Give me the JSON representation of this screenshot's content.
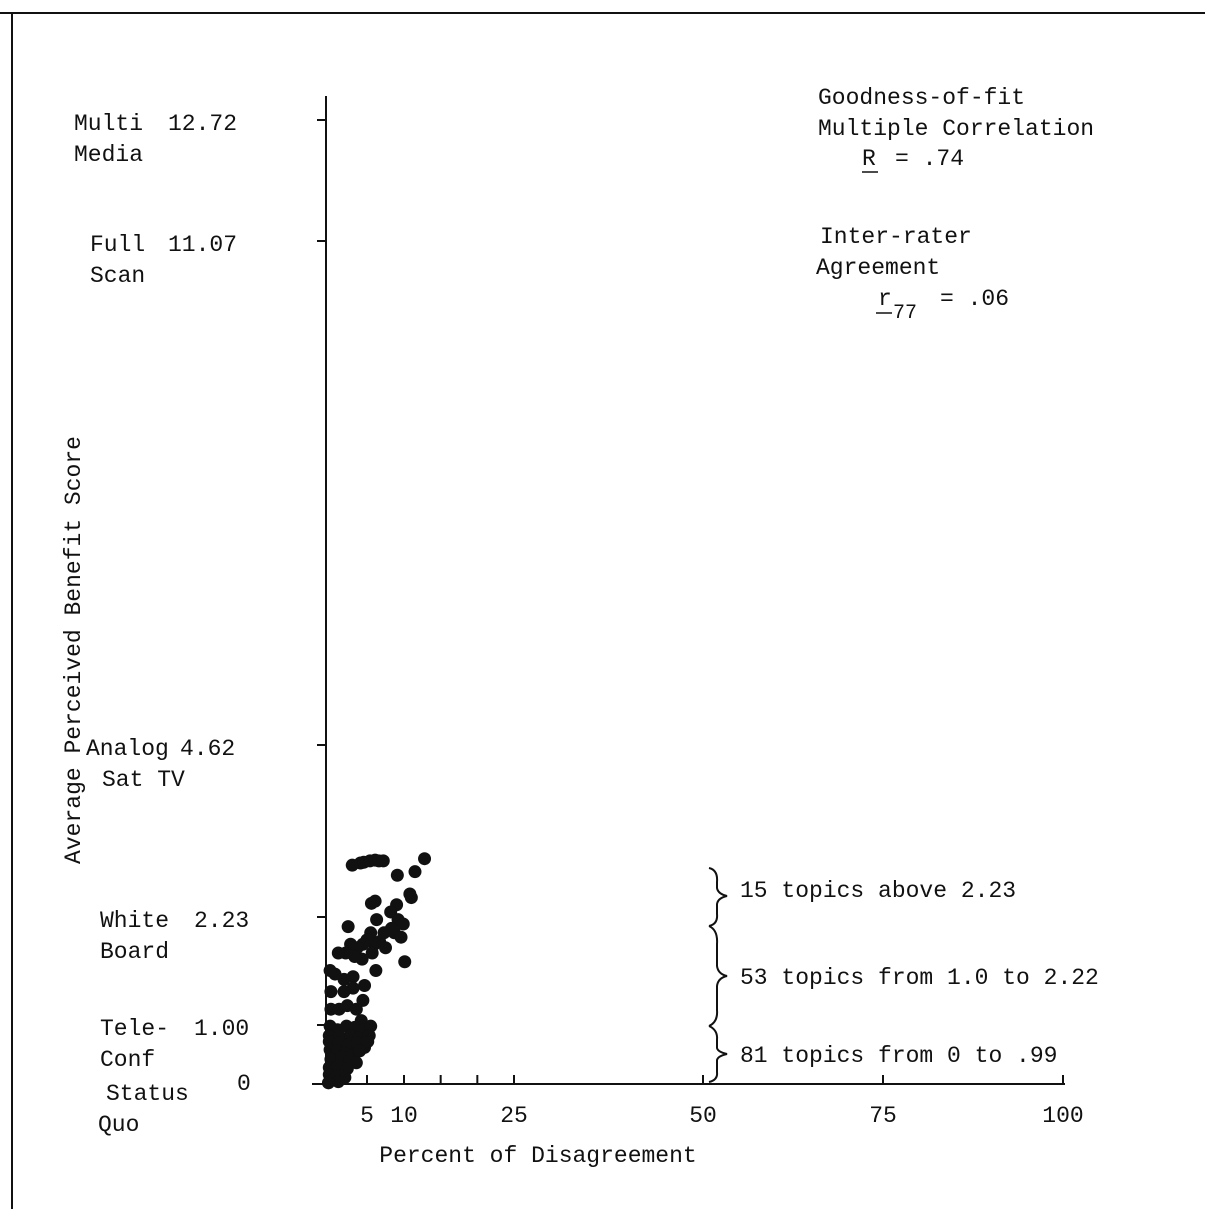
{
  "chart_data": {
    "type": "scatter",
    "title": "",
    "xlabel": "Percent of Disagreement",
    "ylabel": "Average Perceived Benefit Score",
    "xlim": [
      0,
      100
    ],
    "ylim": [
      0,
      12.72
    ],
    "x_ticks": [
      {
        "value": 5,
        "label": "5"
      },
      {
        "value": 10,
        "label": "10"
      },
      {
        "value": 15,
        "label": ""
      },
      {
        "value": 20,
        "label": ""
      },
      {
        "value": 25,
        "label": "25"
      },
      {
        "value": 50,
        "label": "50"
      },
      {
        "value": 75,
        "label": "75"
      },
      {
        "value": 100,
        "label": "100"
      }
    ],
    "y_ticks": [
      {
        "value": 12.72,
        "value_label": "12.72",
        "name_lines": [
          "Multi",
          "Media"
        ]
      },
      {
        "value": 11.07,
        "value_label": "11.07",
        "name_lines": [
          "Full",
          "Scan"
        ]
      },
      {
        "value": 4.62,
        "value_label": "4.62",
        "name_lines": [
          "Analog",
          "Sat TV"
        ]
      },
      {
        "value": 2.23,
        "value_label": "2.23",
        "name_lines": [
          "White",
          "Board"
        ]
      },
      {
        "value": 1.0,
        "value_label": "1.00",
        "name_lines": [
          "Tele-",
          "Conf"
        ]
      },
      {
        "value": 0,
        "value_label": "0",
        "name_lines": [
          "Status",
          "Quo"
        ]
      }
    ],
    "annotations": {
      "fit_heading_lines": [
        "Goodness-of-fit",
        "Multiple Correlation"
      ],
      "fit_symbol": "R",
      "fit_value": "= .74",
      "agreement_heading_lines": [
        "Inter-rater",
        "Agreement"
      ],
      "agreement_symbol": "r",
      "agreement_subscript": "77",
      "agreement_value": "= .06"
    },
    "groups": [
      {
        "label": "15 topics above 2.23",
        "y_range": [
          2.23,
          3.0
        ]
      },
      {
        "label": "53 topics from 1.0 to 2.22",
        "y_range": [
          1.0,
          2.22
        ]
      },
      {
        "label": "81 topics from 0 to .99",
        "y_range": [
          0,
          0.99
        ]
      }
    ],
    "points": [
      [
        3.2,
        2.95
      ],
      [
        4.2,
        2.98
      ],
      [
        4.6,
        2.99
      ],
      [
        5.4,
        3.01
      ],
      [
        6.1,
        3.02
      ],
      [
        6.6,
        3.01
      ],
      [
        7.2,
        3.01
      ],
      [
        12.8,
        3.04
      ],
      [
        11.5,
        2.86
      ],
      [
        9.1,
        2.81
      ],
      [
        10.8,
        2.55
      ],
      [
        9.0,
        2.4
      ],
      [
        11.0,
        2.5
      ],
      [
        5.6,
        2.42
      ],
      [
        6.1,
        2.45
      ],
      [
        8.2,
        2.3
      ],
      [
        9.2,
        2.2
      ],
      [
        9.9,
        2.15
      ],
      [
        8.7,
        2.05
      ],
      [
        9.6,
        2.0
      ],
      [
        8.3,
        2.1
      ],
      [
        6.3,
        2.2
      ],
      [
        5.5,
        2.05
      ],
      [
        6.7,
        1.95
      ],
      [
        7.5,
        1.88
      ],
      [
        6.0,
        1.92
      ],
      [
        5.0,
        1.97
      ],
      [
        4.5,
        1.92
      ],
      [
        3.8,
        1.88
      ],
      [
        3.0,
        1.92
      ],
      [
        2.7,
        2.12
      ],
      [
        7.3,
        2.05
      ],
      [
        5.7,
        1.82
      ],
      [
        4.4,
        1.75
      ],
      [
        3.5,
        1.78
      ],
      [
        2.4,
        1.82
      ],
      [
        1.5,
        1.82
      ],
      [
        6.2,
        1.62
      ],
      [
        10.1,
        1.72
      ],
      [
        3.3,
        1.55
      ],
      [
        2.2,
        1.52
      ],
      [
        1.1,
        1.58
      ],
      [
        0.5,
        1.62
      ],
      [
        4.7,
        1.45
      ],
      [
        3.3,
        1.42
      ],
      [
        2.2,
        1.38
      ],
      [
        0.6,
        1.38
      ],
      [
        0.6,
        1.18
      ],
      [
        1.6,
        1.18
      ],
      [
        2.6,
        1.22
      ],
      [
        3.7,
        1.18
      ],
      [
        4.5,
        1.28
      ],
      [
        4.3,
        1.05
      ],
      [
        0.5,
        0.98
      ],
      [
        1.4,
        0.92
      ],
      [
        2.5,
        0.98
      ],
      [
        3.5,
        0.96
      ],
      [
        4.6,
        0.92
      ],
      [
        5.5,
        0.98
      ],
      [
        0.4,
        0.82
      ],
      [
        1.7,
        0.8
      ],
      [
        3.0,
        0.82
      ],
      [
        4.0,
        0.78
      ],
      [
        5.3,
        0.82
      ],
      [
        0.4,
        0.72
      ],
      [
        1.6,
        0.7
      ],
      [
        2.7,
        0.66
      ],
      [
        3.8,
        0.7
      ],
      [
        4.7,
        0.62
      ],
      [
        5.1,
        0.72
      ],
      [
        0.5,
        0.58
      ],
      [
        1.3,
        0.56
      ],
      [
        2.2,
        0.52
      ],
      [
        3.4,
        0.5
      ],
      [
        4.1,
        0.56
      ],
      [
        0.6,
        0.42
      ],
      [
        1.9,
        0.46
      ],
      [
        2.9,
        0.4
      ],
      [
        3.7,
        0.36
      ],
      [
        0.4,
        0.28
      ],
      [
        1.5,
        0.3
      ],
      [
        2.6,
        0.26
      ],
      [
        0.4,
        0.16
      ],
      [
        1.3,
        0.13
      ],
      [
        2.3,
        0.11
      ],
      [
        0.5,
        0.06
      ],
      [
        1.5,
        0.04
      ],
      [
        0.3,
        0.02
      ]
    ]
  }
}
